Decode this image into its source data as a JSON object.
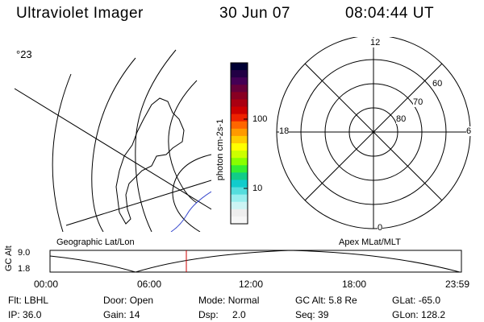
{
  "header": {
    "title": "Ultraviolet Imager",
    "date": "30 Jun 07",
    "time": "08:04:44 UT"
  },
  "geo_panel": {
    "corner_label": "°23",
    "caption": "Geographic Lat/Lon"
  },
  "colorbar": {
    "unit_label": "photon cm-2s-1",
    "tick_labels": [
      "100",
      "10"
    ],
    "colors": [
      "#000033",
      "#220044",
      "#440055",
      "#66003a",
      "#880022",
      "#aa0011",
      "#cc0000",
      "#ee2200",
      "#ff6600",
      "#ff9900",
      "#ffcc00",
      "#ffff00",
      "#ccff00",
      "#88ff00",
      "#33ee33",
      "#11cc88",
      "#11cccc",
      "#55dddd",
      "#99eeee",
      "#ccf4f4",
      "#eeeeee",
      "#f6f6f6"
    ]
  },
  "polar_panel": {
    "caption": "Apex MLat/MLT",
    "mlt_labels": {
      "top": "12",
      "left": "18",
      "right": "6",
      "bottom": "0"
    },
    "lat_labels": [
      "60",
      "70",
      "80"
    ]
  },
  "altitude_plot": {
    "ylabel": "GC Alt",
    "y_ticks": [
      "9.0",
      "1.8"
    ],
    "x_ticks": [
      "00:00",
      "06:00",
      "12:00",
      "18:00",
      "23:59"
    ],
    "marker_color": "#cc0000"
  },
  "info": {
    "flt_label": "Flt:",
    "flt_value": "LBHL",
    "ip_label": "IP:",
    "ip_value": "36.0",
    "door_label": "Door:",
    "door_value": "Open",
    "gain_label": "Gain:",
    "gain_value": "14",
    "mode_label": "Mode:",
    "mode_value": "Normal",
    "dsp_label": "Dsp:",
    "dsp_value": "2.0",
    "gcalt_label": "GC Alt:",
    "gcalt_value": "5.8 Re",
    "seq_label": "Seq:",
    "seq_value": "39",
    "glat_label": "GLat:",
    "glat_value": "-65.0",
    "glon_label": "GLon:",
    "glon_value": "128.2"
  }
}
